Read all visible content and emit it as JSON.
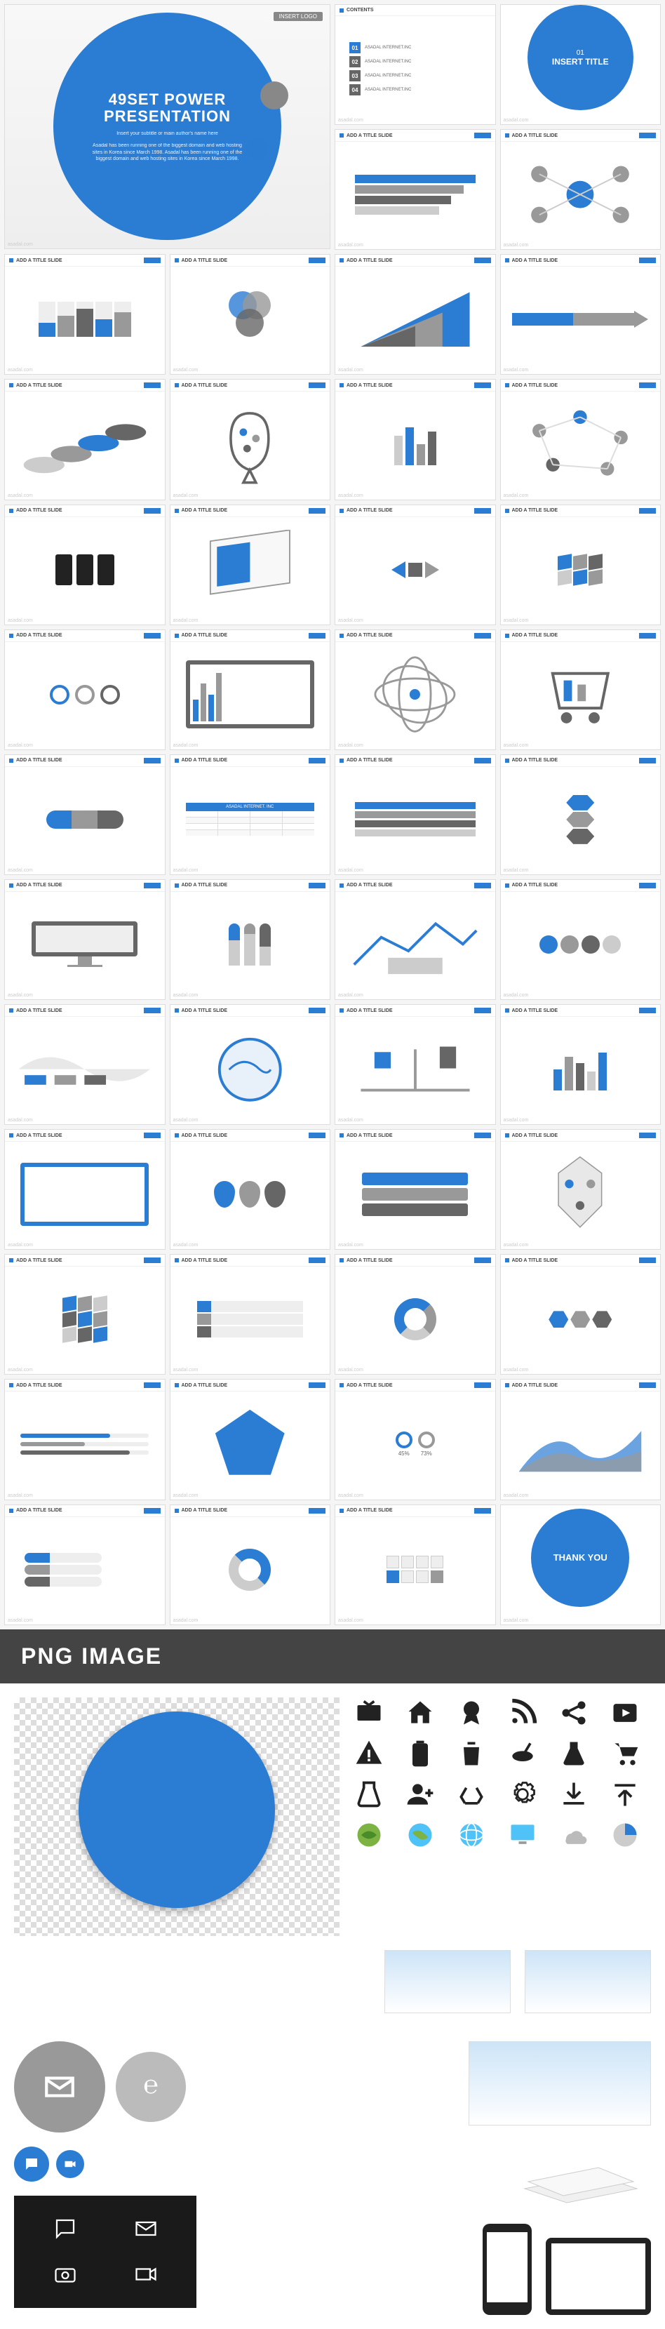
{
  "watermark": "asadal.com",
  "hero": {
    "logo_label": "INSERT LOGO",
    "title_line1": "49SET POWER",
    "title_line2": "PRESENTATION",
    "subtitle": "Insert your subtitle or main author's name here",
    "description": "Asadal has been running one of the biggest domain and web hosting sites in Korea since March 1998. Asadal has been running one of the biggest domain and web hosting sites in Korea since March 1998."
  },
  "contents": {
    "title": "CONTENTS",
    "items": [
      {
        "num": "01",
        "text": "ASADAL INTERNET.INC"
      },
      {
        "num": "02",
        "text": "ASADAL INTERNET.INC"
      },
      {
        "num": "03",
        "text": "ASADAL INTERNET.INC"
      },
      {
        "num": "04",
        "text": "ASADAL INTERNET.INC"
      }
    ]
  },
  "insert_title": {
    "num": "01",
    "text": "INSERT TITLE"
  },
  "slide_title": "ADD A TITLE SLIDE",
  "thank_you": "THANK YOU",
  "png_header": "PNG IMAGE",
  "colors": {
    "accent": "#2b7cd3",
    "dark_gray": "#666666",
    "mid_gray": "#999999",
    "light_gray": "#cccccc",
    "bg_gray": "#f5f5f5",
    "text": "#444444",
    "black": "#1a1a1a"
  },
  "icon_names": [
    "tv",
    "home",
    "badge",
    "rss",
    "share",
    "play",
    "alert",
    "battery",
    "trash",
    "satellite",
    "flask",
    "cart",
    "beaker",
    "user-add",
    "recycle",
    "gear",
    "download",
    "upload",
    "globe-leaf",
    "globe-water",
    "globe-plain",
    "monitor",
    "cloud",
    "pie"
  ],
  "small_circle_icons": [
    "chat",
    "mail",
    "camera",
    "video"
  ],
  "black_box_icons": [
    "chat",
    "mail",
    "camera",
    "video"
  ]
}
